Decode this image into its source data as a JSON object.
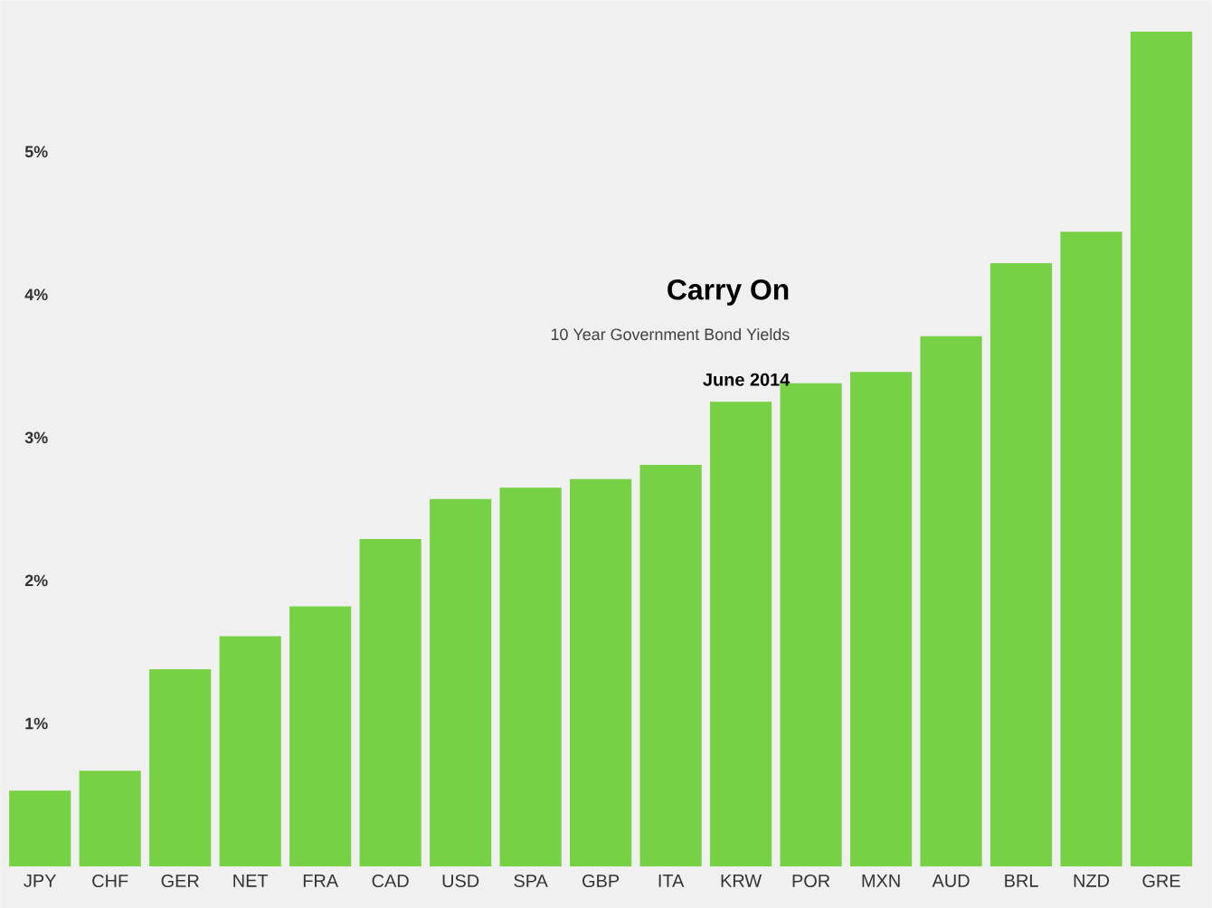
{
  "chart_data": {
    "type": "bar",
    "title": "Carry On",
    "subtitle": "10 Year Government Bond Yields",
    "annotations": [
      "June 2014"
    ],
    "categories": [
      "JPY",
      "CHF",
      "GER",
      "NET",
      "FRA",
      "CAD",
      "USD",
      "SPA",
      "GBP",
      "ITA",
      "KRW",
      "POR",
      "MXN",
      "AUD",
      "BRL",
      "NZD",
      "GRE"
    ],
    "values": [
      0.53,
      0.67,
      1.38,
      1.61,
      1.82,
      2.29,
      2.57,
      2.65,
      2.71,
      2.81,
      3.25,
      3.38,
      3.46,
      3.71,
      4.22,
      4.44,
      5.84
    ],
    "color": "#77d144",
    "ylim": [
      -0.29,
      6.06
    ],
    "yticks": [
      {
        "value": 1,
        "label": "1%"
      },
      {
        "value": 2,
        "label": "2%"
      },
      {
        "value": 3,
        "label": "3%"
      },
      {
        "value": 4,
        "label": "4%"
      },
      {
        "value": 5,
        "label": "5%"
      }
    ]
  }
}
